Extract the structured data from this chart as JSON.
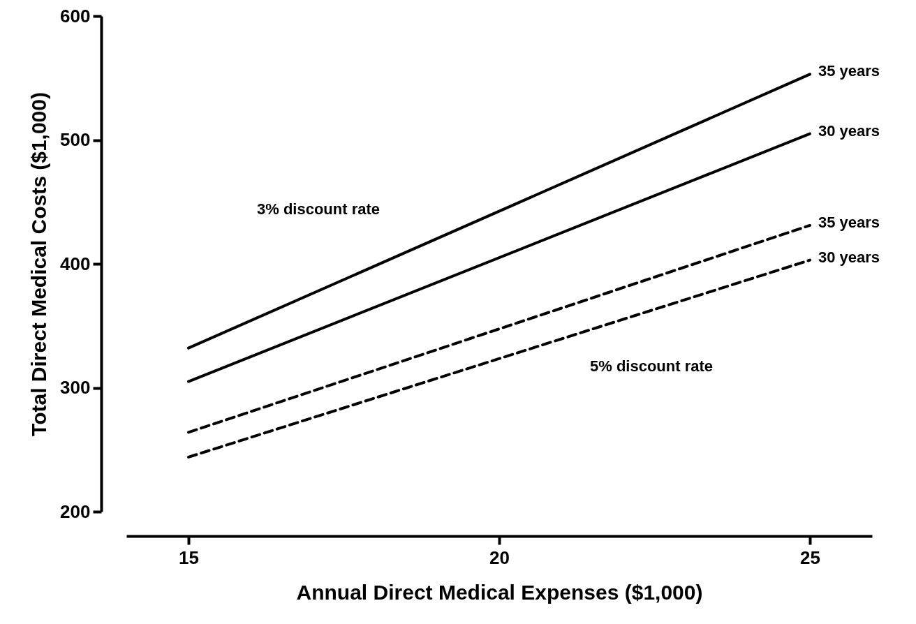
{
  "chart_data": {
    "type": "line",
    "xlabel": "Annual Direct Medical Expenses ($1,000)",
    "ylabel": "Total Direct Medical Costs ($1,000)",
    "x": [
      15,
      25
    ],
    "xlim": [
      14,
      26
    ],
    "xticks": [
      15,
      20,
      25
    ],
    "ylim": [
      200,
      600
    ],
    "yticks": [
      200,
      300,
      400,
      500,
      600
    ],
    "series": [
      {
        "name": "35 years",
        "color": "#000000",
        "line_style": "solid",
        "values": [
          332,
          553
        ]
      },
      {
        "name": "30 years",
        "color": "#000000",
        "line_style": "solid",
        "values": [
          305,
          505
        ]
      },
      {
        "name": "35 years",
        "color": "#000000",
        "line_style": "dashed",
        "values": [
          264,
          431
        ]
      },
      {
        "name": "30 years",
        "color": "#000000",
        "line_style": "dashed",
        "values": [
          244,
          403
        ]
      }
    ],
    "annotations": [
      "3% discount rate",
      "5% discount rate"
    ],
    "legend": false
  }
}
